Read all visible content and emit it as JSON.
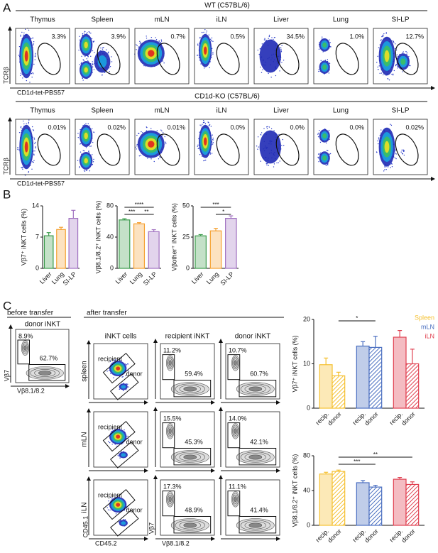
{
  "panel_labels": [
    "A",
    "B",
    "C"
  ],
  "panel_a": {
    "x_axis": "CD1d-tet-PBS57",
    "y_axis": "TCRβ",
    "tissues": [
      "Thymus",
      "Spleen",
      "mLN",
      "iLN",
      "Liver",
      "Lung",
      "SI-LP"
    ],
    "groups": [
      {
        "title": "WT (C57BL/6)",
        "percentages": [
          "3.3%",
          "3.9%",
          "0.7%",
          "0.5%",
          "34.5%",
          "1.0%",
          "12.7%"
        ]
      },
      {
        "title": "CD1d-KO (C57BL/6)",
        "percentages": [
          "0.01%",
          "0.02%",
          "0.01%",
          "0.0%",
          "0.0%",
          "0.0%",
          "0.02%"
        ]
      }
    ]
  },
  "panel_c": {
    "before_title": "before transfer",
    "before_subtitle": "donor iNKT",
    "before_percentages": [
      "8.9%",
      "62.7%"
    ],
    "gate_x_axis": "Vβ8.1/8.2",
    "gate_y_axis": "Vβ7",
    "after_title": "after transfer",
    "columns": [
      "iNKT cells",
      "recipient iNKT",
      "donor iNKT"
    ],
    "population_labels": [
      "recipient",
      "donor"
    ],
    "congenic_x_axis": "CD45.2",
    "congenic_y_axis": "CD45.1",
    "rows": [
      {
        "tissue": "spleen",
        "recipient": [
          "11.2%",
          "59.4%"
        ],
        "donor": [
          "10.7%",
          "60.7%"
        ]
      },
      {
        "tissue": "mLN",
        "recipient": [
          "15.5%",
          "45.3%"
        ],
        "donor": [
          "14.0%",
          "42.1%"
        ]
      },
      {
        "tissue": "iLN",
        "recipient": [
          "17.3%",
          "48.9%"
        ],
        "donor": [
          "11.1%",
          "41.4%"
        ]
      }
    ]
  },
  "chart_data": [
    {
      "type": "bar",
      "ylabel": "Vβ7⁺ iNKT cells (%)",
      "categories": [
        "Liver",
        "Lung",
        "SI-LP"
      ],
      "values": [
        7.3,
        8.7,
        11.2
      ],
      "errors": [
        0.7,
        0.5,
        1.8
      ],
      "colors": [
        "#3a9a4a",
        "#f5a030",
        "#a070c0"
      ],
      "ylim": [
        0,
        14
      ],
      "yticks": [
        0,
        7,
        14
      ],
      "comparisons": []
    },
    {
      "type": "bar",
      "ylabel": "Vβ8.1/8.2⁺ iNKT cells (%)",
      "categories": [
        "Liver",
        "Lung",
        "SI-LP"
      ],
      "values": [
        62,
        57,
        47
      ],
      "errors": [
        1.5,
        1.5,
        2.5
      ],
      "colors": [
        "#3a9a4a",
        "#f5a030",
        "#a070c0"
      ],
      "ylim": [
        0,
        80
      ],
      "yticks": [
        0,
        40,
        80
      ],
      "comparisons": [
        {
          "label": "****",
          "between": [
            0,
            2
          ]
        },
        {
          "label": "***",
          "between": [
            0,
            1
          ]
        },
        {
          "label": "**",
          "between": [
            1,
            2
          ]
        }
      ]
    },
    {
      "type": "bar",
      "ylabel": "Vβother⁺ iNKT cells (%)",
      "categories": [
        "Liver",
        "Lung",
        "SI-LP"
      ],
      "values": [
        26,
        30,
        40
      ],
      "errors": [
        1,
        2,
        2
      ],
      "colors": [
        "#3a9a4a",
        "#f5a030",
        "#a070c0"
      ],
      "ylim": [
        0,
        50
      ],
      "yticks": [
        0,
        25,
        50
      ],
      "comparisons": [
        {
          "label": "***",
          "between": [
            0,
            2
          ]
        },
        {
          "label": "*",
          "between": [
            1,
            2
          ]
        }
      ]
    },
    {
      "type": "grouped_bar",
      "ylabel": "Vβ7⁺ iNKT cells (%)",
      "categories": [
        "recip.",
        "donor"
      ],
      "hatch": [
        false,
        true
      ],
      "series": [
        {
          "name": "Spleen",
          "color": "#f5c030",
          "values": [
            9.8,
            7.3
          ],
          "errors": [
            1.5,
            0.8
          ]
        },
        {
          "name": "mLN",
          "color": "#4a6fc0",
          "values": [
            14,
            13.7
          ],
          "errors": [
            1,
            2.5
          ]
        },
        {
          "name": "iLN",
          "color": "#e04050",
          "values": [
            16,
            10
          ],
          "errors": [
            1.5,
            3.3
          ]
        }
      ],
      "ylim": [
        0,
        20
      ],
      "yticks": [
        0,
        10,
        20
      ],
      "legend": "top-right",
      "comparisons": [
        {
          "label": "*",
          "between": [
            [
              0,
              1
            ],
            [
              1,
              1
            ]
          ]
        }
      ]
    },
    {
      "type": "grouped_bar",
      "ylabel": "Vβ8.1/8.2⁺ iNKT cells (%)",
      "categories": [
        "recip.",
        "donor"
      ],
      "hatch": [
        false,
        true
      ],
      "series": [
        {
          "color": "#f5c030",
          "values": [
            59,
            62
          ],
          "errors": [
            2,
            1.5
          ]
        },
        {
          "color": "#4a6fc0",
          "values": [
            49,
            44
          ],
          "errors": [
            2.5,
            2
          ]
        },
        {
          "color": "#e04050",
          "values": [
            53,
            47
          ],
          "errors": [
            2,
            3
          ]
        }
      ],
      "ylim": [
        0,
        80
      ],
      "yticks": [
        0,
        40,
        80
      ],
      "comparisons": [
        {
          "label": "**",
          "between": [
            [
              0,
              1
            ],
            [
              2,
              1
            ]
          ]
        },
        {
          "label": "***",
          "between": [
            [
              0,
              1
            ],
            [
              1,
              1
            ]
          ]
        }
      ]
    }
  ]
}
